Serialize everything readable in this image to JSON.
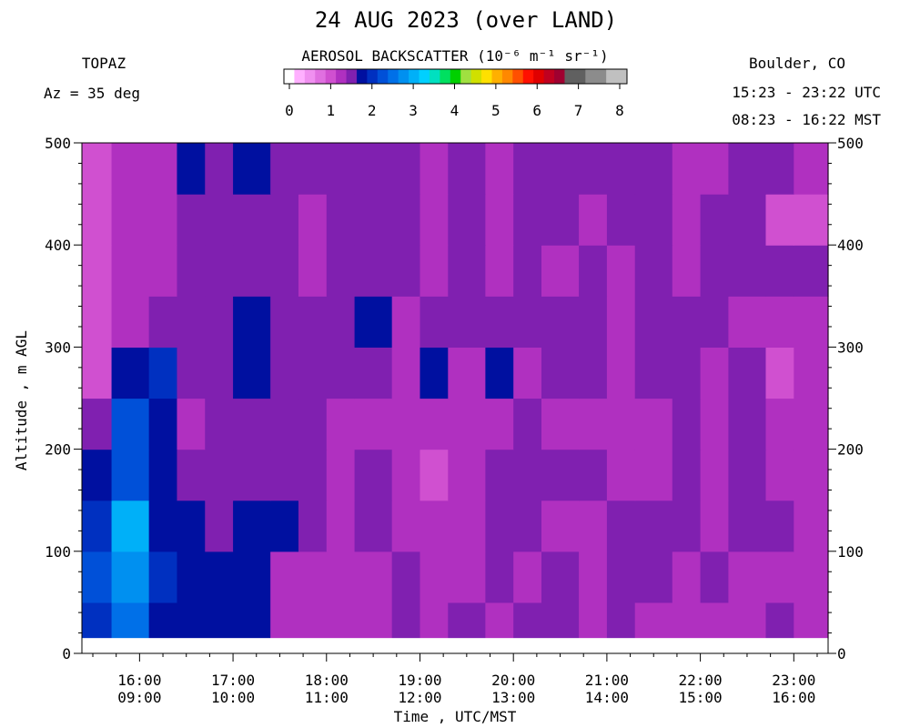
{
  "header": {
    "title": "24 AUG 2023 (over LAND)",
    "instrument": "TOPAZ",
    "azimuth": "Az =  35 deg",
    "location": "Boulder, CO",
    "utc_range": "15:23 - 23:22 UTC",
    "mst_range": "08:23 - 16:22 MST"
  },
  "colorbar": {
    "label": "AEROSOL BACKSCATTER (10⁻⁶ m⁻¹ sr⁻¹)",
    "ticks": [
      "0",
      "1",
      "2",
      "3",
      "4",
      "5",
      "6",
      "7",
      "8"
    ],
    "colors": [
      "#ffffff",
      "#ffb0ff",
      "#f090f0",
      "#e070e0",
      "#d050d0",
      "#b030c0",
      "#8020b0",
      "#0010a0",
      "#0030c0",
      "#0050d8",
      "#0070e8",
      "#0090f0",
      "#00b0f8",
      "#00d0ff",
      "#00e0c0",
      "#00e060",
      "#00d000",
      "#a0e040",
      "#d0e000",
      "#ffe000",
      "#ffb000",
      "#ff8800",
      "#ff5000",
      "#ff1000",
      "#e00000",
      "#c00020",
      "#a00030",
      "#606060",
      "#606060",
      "#8c8c8c",
      "#8c8c8c",
      "#c0c0c0",
      "#c0c0c0"
    ]
  },
  "chart_data": {
    "type": "heatmap",
    "title": "24 AUG 2023 (over LAND)",
    "xlabel": "Time , UTC/MST",
    "ylabel": "Altitude , m AGL",
    "x_ticks": [
      {
        "utc": "16:00",
        "mst": "09:00"
      },
      {
        "utc": "17:00",
        "mst": "10:00"
      },
      {
        "utc": "18:00",
        "mst": "11:00"
      },
      {
        "utc": "19:00",
        "mst": "12:00"
      },
      {
        "utc": "20:00",
        "mst": "13:00"
      },
      {
        "utc": "21:00",
        "mst": "14:00"
      },
      {
        "utc": "22:00",
        "mst": "15:00"
      },
      {
        "utc": "23:00",
        "mst": "16:00"
      }
    ],
    "xlim_utc_hours": [
      15.383,
      23.367
    ],
    "ylim": [
      0,
      500
    ],
    "y_ticks": [
      "0",
      "100",
      "200",
      "300",
      "400",
      "500"
    ],
    "colorbar_range": [
      0,
      8
    ],
    "columns_utc_hours": [
      15.383,
      15.7,
      16.1,
      16.4,
      16.7,
      17.0,
      17.4,
      17.7,
      18.0,
      18.3,
      18.7,
      19.0,
      19.3,
      19.7,
      20.0,
      20.3,
      20.7,
      21.0,
      21.3,
      21.7,
      22.0,
      22.3,
      22.7,
      23.0,
      23.367
    ],
    "rows_alt_m": [
      15,
      50,
      100,
      150,
      200,
      250,
      300,
      350,
      400,
      450,
      500
    ],
    "values": [
      [
        2.1,
        2.6,
        1.9,
        1.8,
        1.7,
        1.7,
        1.4,
        1.3,
        1.3,
        1.4,
        1.5,
        1.3,
        1.5,
        1.4,
        1.5,
        1.5,
        1.4,
        1.6,
        1.4,
        1.3,
        1.4,
        1.3,
        1.5,
        1.4
      ],
      [
        2.3,
        2.7,
        2.0,
        1.8,
        1.7,
        1.7,
        1.4,
        1.4,
        1.3,
        1.4,
        1.5,
        1.3,
        1.4,
        1.5,
        1.4,
        1.5,
        1.4,
        1.5,
        1.5,
        1.4,
        1.5,
        1.3,
        1.4,
        1.3
      ],
      [
        2.0,
        3.0,
        1.9,
        1.7,
        1.6,
        1.7,
        1.8,
        1.6,
        1.4,
        1.5,
        1.4,
        1.4,
        1.4,
        1.5,
        1.5,
        1.4,
        1.4,
        1.5,
        1.5,
        1.5,
        1.4,
        1.5,
        1.5,
        1.4
      ],
      [
        1.7,
        2.4,
        1.9,
        1.6,
        1.6,
        1.6,
        1.6,
        1.6,
        1.4,
        1.5,
        1.4,
        1.2,
        1.4,
        1.5,
        1.6,
        1.5,
        1.6,
        1.4,
        1.4,
        1.5,
        1.4,
        1.5,
        1.3,
        1.4
      ],
      [
        1.6,
        2.4,
        1.8,
        1.4,
        1.6,
        1.6,
        1.5,
        1.5,
        1.4,
        1.4,
        1.4,
        1.3,
        1.4,
        1.4,
        1.5,
        1.4,
        1.4,
        1.3,
        1.4,
        1.5,
        1.4,
        1.5,
        1.4,
        1.4
      ],
      [
        1.2,
        1.7,
        2.0,
        1.5,
        1.6,
        1.7,
        1.6,
        1.5,
        1.5,
        1.6,
        1.4,
        1.7,
        1.4,
        1.7,
        1.4,
        1.5,
        1.5,
        1.4,
        1.5,
        1.6,
        1.4,
        1.5,
        1.2,
        1.3
      ],
      [
        1.1,
        1.3,
        1.6,
        1.6,
        1.6,
        1.7,
        1.6,
        1.6,
        1.5,
        1.7,
        1.4,
        1.6,
        1.5,
        1.5,
        1.6,
        1.5,
        1.5,
        1.4,
        1.5,
        1.5,
        1.5,
        1.4,
        1.4,
        1.3
      ],
      [
        1.2,
        1.3,
        1.4,
        1.5,
        1.5,
        1.5,
        1.6,
        1.4,
        1.5,
        1.5,
        1.5,
        1.3,
        1.5,
        1.3,
        1.5,
        1.4,
        1.5,
        1.4,
        1.6,
        1.4,
        1.5,
        1.6,
        1.5,
        1.5
      ],
      [
        1.1,
        1.3,
        1.3,
        1.6,
        1.5,
        1.6,
        1.6,
        1.4,
        1.5,
        1.5,
        1.6,
        1.3,
        1.6,
        1.3,
        1.5,
        1.6,
        1.3,
        1.5,
        1.5,
        1.3,
        1.5,
        1.6,
        1.2,
        1.2
      ],
      [
        1.1,
        1.3,
        1.3,
        1.7,
        1.6,
        1.7,
        1.6,
        1.6,
        1.5,
        1.5,
        1.6,
        1.3,
        1.5,
        1.4,
        1.5,
        1.6,
        1.5,
        1.5,
        1.5,
        1.3,
        1.4,
        1.5,
        1.5,
        1.3
      ]
    ]
  }
}
